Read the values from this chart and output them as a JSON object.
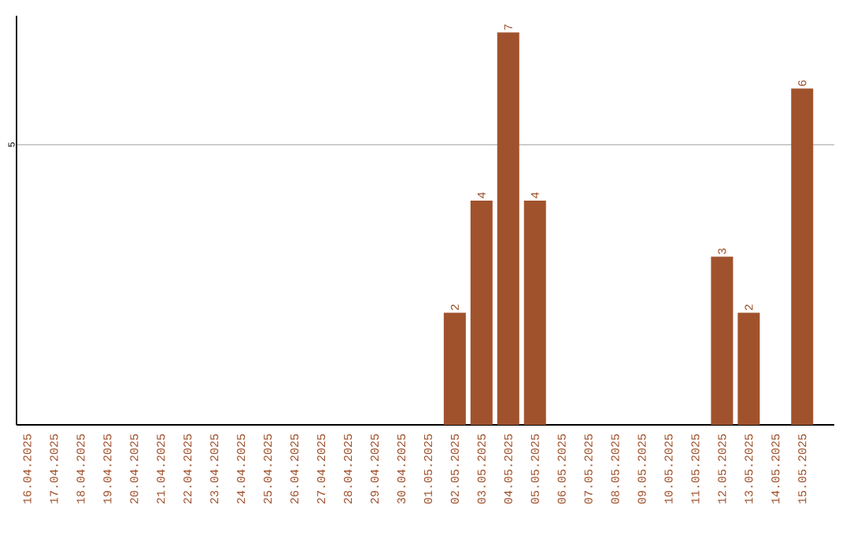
{
  "chart_data": {
    "type": "bar",
    "categories": [
      "16.04.2025",
      "17.04.2025",
      "18.04.2025",
      "19.04.2025",
      "20.04.2025",
      "21.04.2025",
      "22.04.2025",
      "23.04.2025",
      "24.04.2025",
      "25.04.2025",
      "26.04.2025",
      "27.04.2025",
      "28.04.2025",
      "29.04.2025",
      "30.04.2025",
      "01.05.2025",
      "02.05.2025",
      "03.05.2025",
      "04.05.2025",
      "05.05.2025",
      "06.05.2025",
      "07.05.2025",
      "08.05.2025",
      "09.05.2025",
      "10.05.2025",
      "11.05.2025",
      "12.05.2025",
      "13.05.2025",
      "14.05.2025",
      "15.05.2025"
    ],
    "values": [
      null,
      null,
      null,
      null,
      null,
      null,
      null,
      null,
      null,
      null,
      null,
      null,
      null,
      null,
      null,
      null,
      2,
      4,
      7,
      4,
      null,
      null,
      null,
      null,
      null,
      null,
      3,
      2,
      null,
      6
    ],
    "data_labels": true,
    "color": "#a0522d",
    "ylim": [
      0,
      7.3
    ],
    "yticks": [
      5
    ],
    "grid": "y"
  }
}
